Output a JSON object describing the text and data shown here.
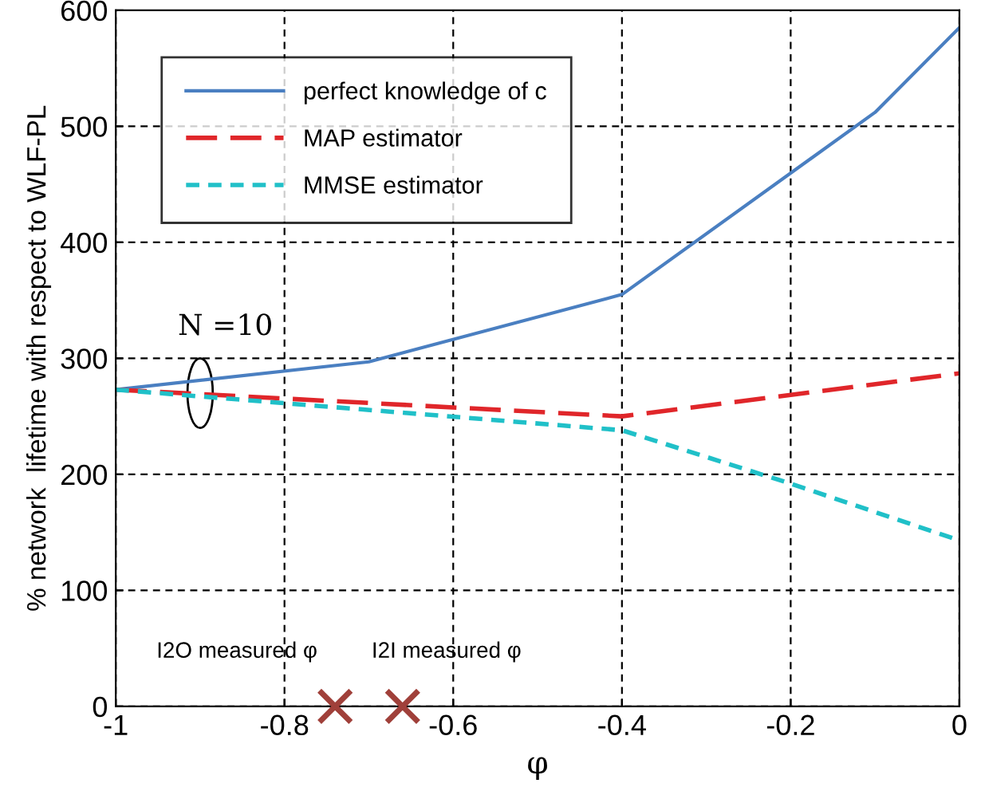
{
  "chart_data": {
    "type": "line",
    "xlabel": "φ",
    "ylabel": "% network  lifetime with respect to WLF-PL",
    "xlim": [
      -1,
      0
    ],
    "ylim": [
      0,
      600
    ],
    "xticks": [
      -1,
      -0.8,
      -0.6,
      -0.4,
      -0.2,
      0
    ],
    "yticks": [
      0,
      100,
      200,
      300,
      400,
      500,
      600
    ],
    "grid": true,
    "legend": "top left",
    "marker": "none",
    "series": [
      {
        "name": "perfect knowledge of c",
        "color": "#4a7fc1",
        "line_style": "solid",
        "x": [
          -1,
          -0.7,
          -0.4,
          -0.1,
          0
        ],
        "values": [
          273,
          297,
          355,
          512,
          585
        ]
      },
      {
        "name": "MAP estimator",
        "color": "#e0262a",
        "line_style": "dashed",
        "x": [
          -1,
          -0.4,
          0
        ],
        "values": [
          273,
          250,
          287
        ]
      },
      {
        "name": "MMSE estimator",
        "color": "#20c0c8",
        "line_style": "dotted",
        "x": [
          -1,
          -0.4,
          -0.2,
          0
        ],
        "values": [
          273,
          238,
          192,
          143
        ]
      },
      {
        "type": "scatter",
        "color": "#a0403a",
        "marker": "cross",
        "x": [
          -0.74,
          -0.66
        ],
        "values": [
          0,
          0
        ]
      }
    ],
    "annotations": [
      {
        "text": "N =10",
        "x": -0.9,
        "y": 275
      },
      {
        "text": "I2O measured φ",
        "x": -0.74,
        "y": 0
      },
      {
        "text": "I2I measured φ",
        "x": -0.66,
        "y": 0
      }
    ]
  }
}
